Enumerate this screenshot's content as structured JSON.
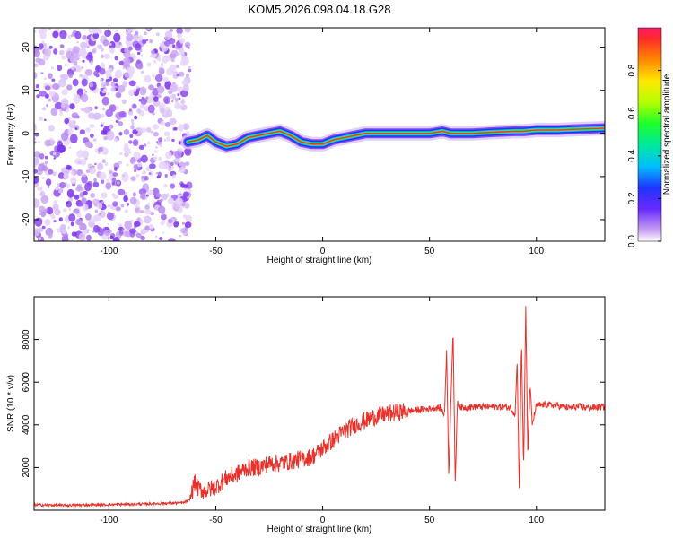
{
  "page_title": "KOM5.2026.098.04.18.G28",
  "chart_data": [
    {
      "type": "heatmap",
      "xlabel": "Height of straight line (km)",
      "ylabel": "Frequency (Hz)",
      "xlim": [
        -135,
        132
      ],
      "ylim": [
        -25,
        24.5
      ],
      "xticks": [
        "-100",
        "-50",
        "0",
        "50",
        "100"
      ],
      "xtick_values": [
        -100,
        -50,
        0,
        50,
        100
      ],
      "yticks": [
        "20",
        "10",
        "0",
        "-10",
        "-20"
      ],
      "ytick_values": [
        20,
        10,
        0,
        -10,
        -20
      ],
      "noise_region_x": [
        -135,
        -62
      ],
      "signal_track": {
        "x": [
          -63,
          -58,
          -54,
          -50,
          -45,
          -40,
          -35,
          -30,
          -25,
          -20,
          -15,
          -10,
          -5,
          0,
          5,
          10,
          15,
          20,
          30,
          40,
          50,
          56,
          60,
          70,
          80,
          90,
          94,
          100,
          110,
          120,
          132
        ],
        "freq": [
          -2,
          -1.5,
          -0.5,
          -2,
          -3,
          -2.5,
          -1,
          -0.5,
          0,
          0.5,
          -0.5,
          -2,
          -2.5,
          -2.5,
          -1.5,
          -1,
          -0.5,
          0,
          0,
          0,
          0,
          0.5,
          0,
          0,
          0.3,
          0.5,
          0.5,
          0.8,
          0.8,
          1,
          1.2
        ]
      },
      "colorbar": {
        "label": "Normalized spectral amplitude",
        "range": [
          0,
          1
        ],
        "ticks": [
          "0.0",
          "0.2",
          "0.4",
          "0.6",
          "0.8"
        ],
        "tick_values": [
          0,
          0.2,
          0.4,
          0.6,
          0.8
        ]
      }
    },
    {
      "type": "line",
      "xlabel": "Height of straight line (km)",
      "ylabel": "SNR (10 * v/v)",
      "xlim": [
        -135,
        132
      ],
      "ylim": [
        0,
        10000
      ],
      "xticks": [
        "-100",
        "-50",
        "0",
        "50",
        "100"
      ],
      "xtick_values": [
        -100,
        -50,
        0,
        50,
        100
      ],
      "yticks": [
        "2000",
        "4000",
        "6000",
        "8000"
      ],
      "ytick_values": [
        2000,
        4000,
        6000,
        8000
      ],
      "color": "#e8312b",
      "series": [
        {
          "x": [
            -135,
            -120,
            -100,
            -80,
            -65,
            -62,
            -60,
            -58,
            -55,
            -50,
            -45,
            -40,
            -35,
            -30,
            -25,
            -20,
            -15,
            -10,
            -5,
            0,
            5,
            10,
            15,
            20,
            25,
            30,
            35,
            40,
            45,
            50,
            52,
            55,
            57,
            58,
            59,
            60,
            61,
            62,
            63,
            65,
            70,
            75,
            80,
            85,
            88,
            90,
            91,
            92,
            93,
            94,
            95,
            96,
            97,
            98,
            100,
            105,
            110,
            115,
            120,
            125,
            132
          ],
          "y": [
            250,
            230,
            260,
            300,
            350,
            500,
            1300,
            1000,
            900,
            1100,
            1500,
            1700,
            2000,
            2000,
            2200,
            2200,
            2300,
            2400,
            2500,
            2900,
            3300,
            3700,
            4000,
            4200,
            4400,
            4500,
            4600,
            4650,
            4700,
            4750,
            4800,
            4800,
            4500,
            7500,
            1500,
            5200,
            8500,
            1200,
            5000,
            4800,
            4850,
            4850,
            4850,
            4850,
            4800,
            4500,
            7000,
            800,
            8000,
            2000,
            9500,
            2500,
            6000,
            4000,
            4900,
            4950,
            4900,
            4800,
            4850,
            4800,
            4850
          ]
        }
      ]
    }
  ]
}
